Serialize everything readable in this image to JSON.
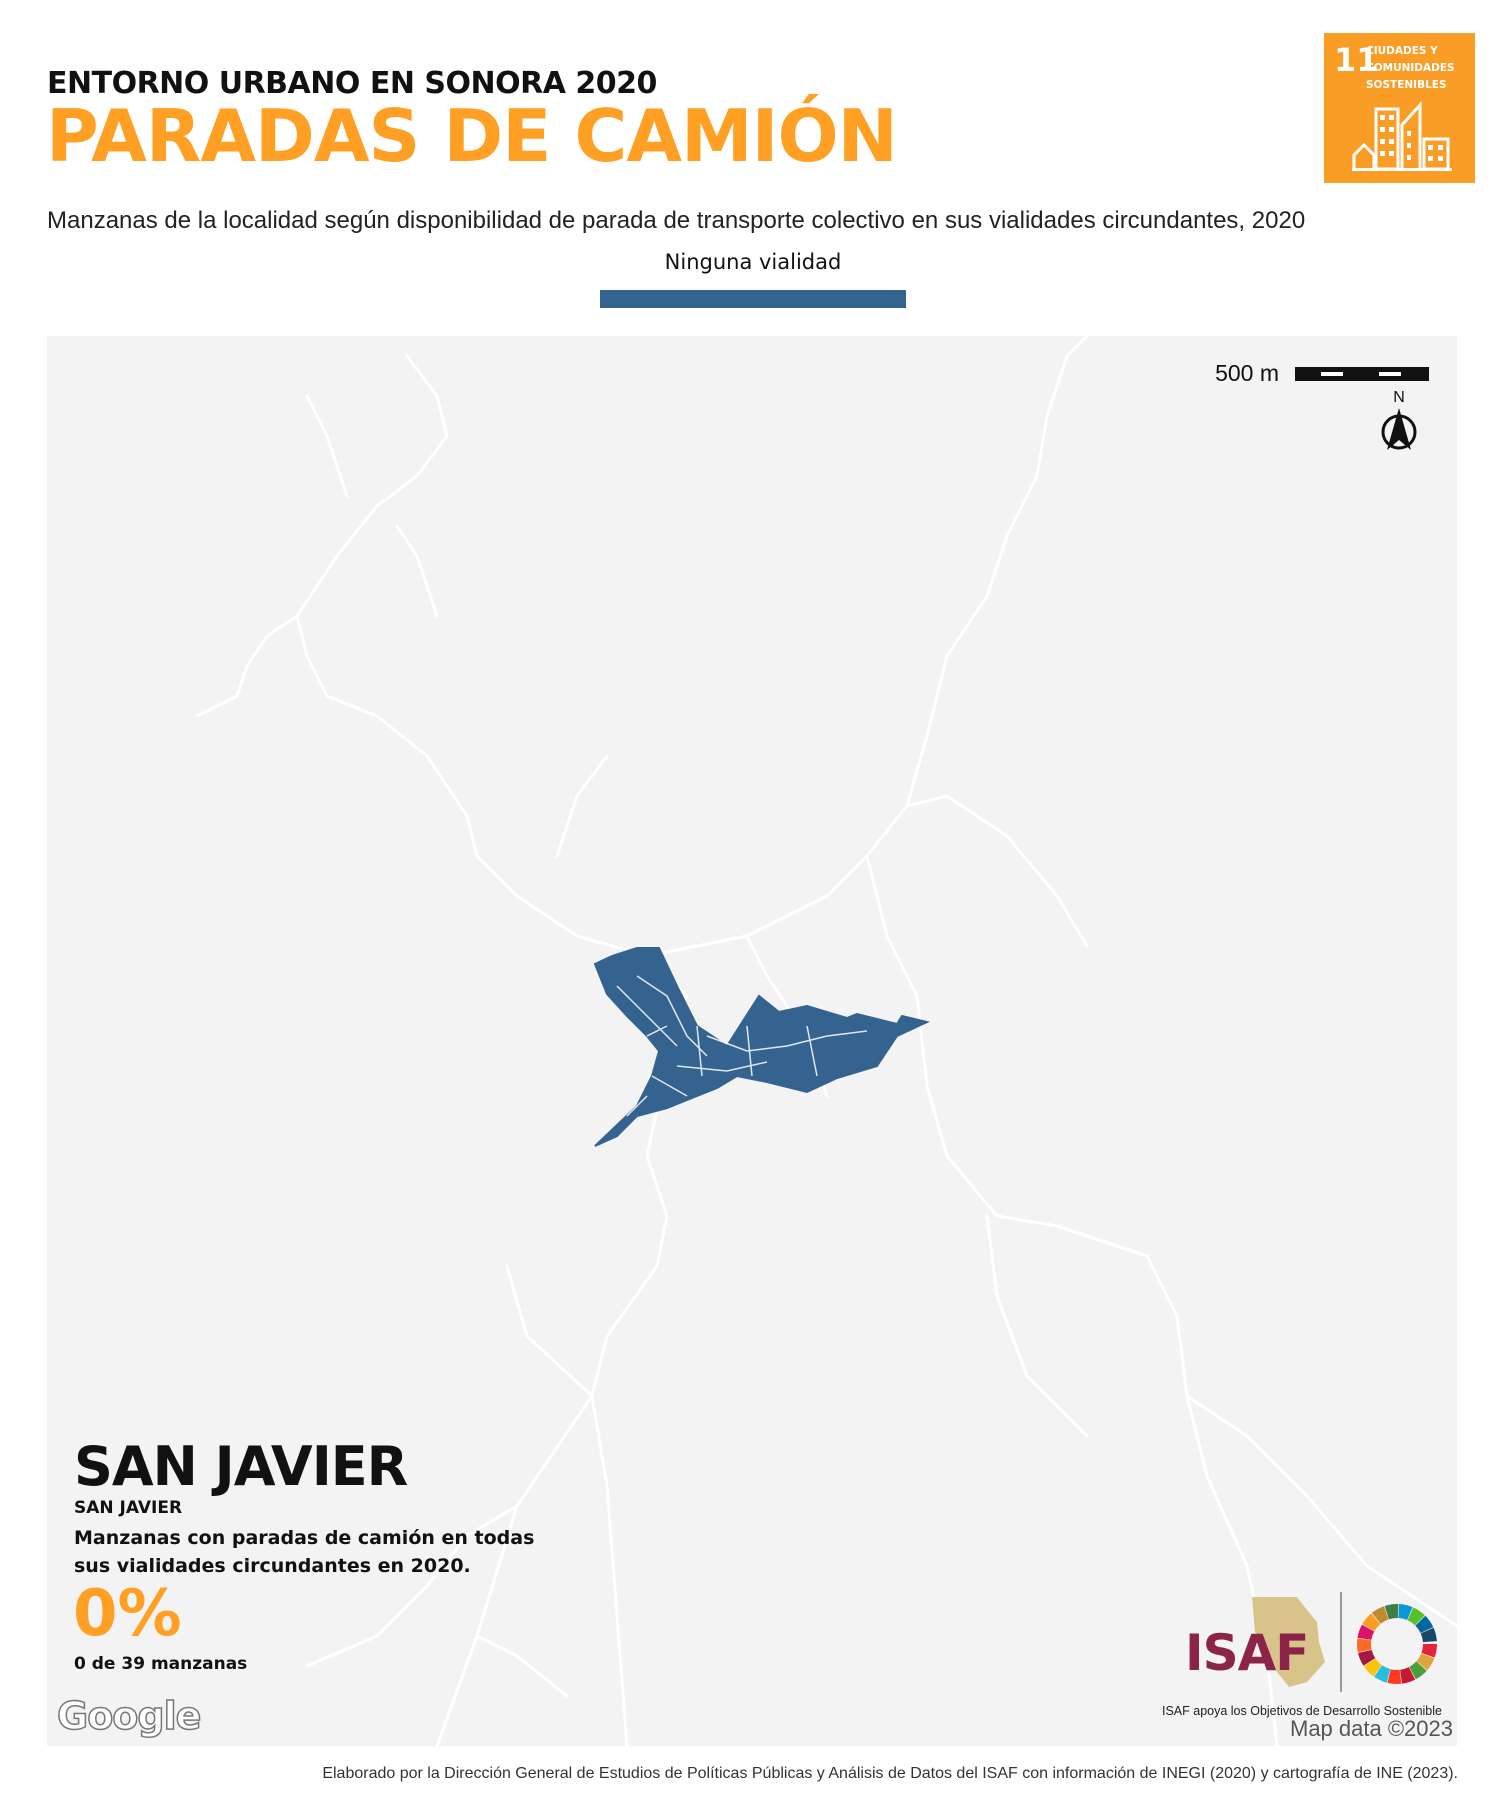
{
  "header": {
    "pre_title": "ENTORNO URBANO EN SONORA 2020",
    "title": "PARADAS DE CAMIÓN",
    "subtitle": "Manzanas de la localidad según disponibilidad de parada de transporte colectivo en sus vialidades circundantes, 2020"
  },
  "legend": {
    "label": "Ninguna vialidad",
    "color": "#34638f"
  },
  "sdg_badge": {
    "number": "11",
    "text": "CIUDADES Y COMUNIDADES SOSTENIBLES",
    "color": "#f99d26",
    "icon": "buildings-icon"
  },
  "map": {
    "scale_label": "500 m",
    "north_label": "N",
    "attribution": "Map data ©2023",
    "google_logo": "Google",
    "road_color": "#ffffff",
    "background_color": "#f3f3f3",
    "block_color": "#34638f"
  },
  "locality": {
    "name": "SAN JAVIER",
    "municipality": "SAN JAVIER",
    "description": "Manzanas con paradas de camión en todas sus vialidades circundantes en 2020.",
    "percent": "0%",
    "count_text": "0 de 39 manzanas"
  },
  "logos": {
    "isaf_text": "ISAF",
    "isaf_caption": "ISAF apoya los Objetivos de Desarrollo Sostenible",
    "isaf_color": "#8c2349"
  },
  "footer": {
    "credits": "Elaborado por la Dirección General de Estudios de Políticas Públicas y Análisis de Datos del ISAF con información de INEGI (2020) y cartografía de INE (2023)."
  }
}
